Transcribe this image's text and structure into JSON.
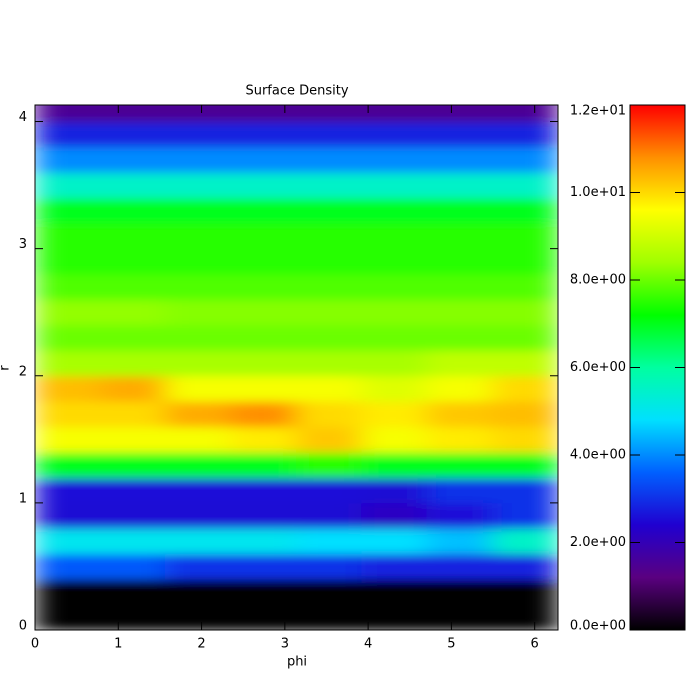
{
  "chart_data": {
    "type": "heatmap",
    "title": "Surface Density",
    "x_label": "phi",
    "y_label": "r",
    "xlim": [
      0,
      6.28
    ],
    "ylim": [
      0,
      4.13
    ],
    "xticks": [
      0,
      1,
      2,
      3,
      4,
      5,
      6
    ],
    "yticks": [
      0,
      1,
      2,
      3,
      4
    ],
    "x_bins": [
      0,
      0.785,
      1.57,
      2.355,
      3.14,
      3.925,
      4.71,
      5.495,
      6.28
    ],
    "y_bins": [
      0,
      0.2,
      0.4,
      0.6,
      0.8,
      1.0,
      1.2,
      1.4,
      1.6,
      1.8,
      2.0,
      2.2,
      2.4,
      2.6,
      2.8,
      3.0,
      3.2,
      3.4,
      3.6,
      3.8,
      4.0,
      4.2
    ],
    "z": [
      [
        0,
        0,
        0,
        0,
        0,
        0,
        0,
        0
      ],
      [
        0,
        0,
        0,
        0,
        0,
        0,
        0,
        0
      ],
      [
        3.5,
        3.5,
        3,
        3,
        3,
        2.8,
        2.8,
        2.8
      ],
      [
        5,
        5,
        5,
        5,
        4.8,
        4.8,
        4.5,
        5.5
      ],
      [
        2.5,
        2.5,
        2.5,
        2.5,
        2.5,
        2.2,
        2.6,
        3
      ],
      [
        2.6,
        2.6,
        2.6,
        2.6,
        2.6,
        2.5,
        3,
        3
      ],
      [
        7,
        7,
        7,
        7,
        7.5,
        7,
        7,
        7
      ],
      [
        9.5,
        9.5,
        9.5,
        9.8,
        10.2,
        9.5,
        9.8,
        10
      ],
      [
        10,
        10,
        10.5,
        10.8,
        10,
        9.8,
        10.2,
        10.3
      ],
      [
        10.3,
        10.5,
        9.5,
        9.5,
        9.5,
        9.2,
        9.5,
        10
      ],
      [
        8.5,
        8.5,
        8.5,
        8.5,
        8.5,
        8.5,
        8.8,
        8.8
      ],
      [
        8,
        8,
        8,
        8,
        8,
        8,
        8,
        8
      ],
      [
        8.3,
        8.3,
        8.2,
        8.2,
        8.2,
        8.2,
        8.2,
        8.2
      ],
      [
        7.8,
        7.8,
        7.8,
        7.8,
        7.8,
        7.8,
        7.8,
        7.8
      ],
      [
        7.5,
        7.5,
        7.5,
        7.5,
        7.5,
        7.5,
        7.5,
        7.5
      ],
      [
        7.5,
        7.5,
        7.5,
        7.5,
        7.5,
        7.5,
        7.5,
        7.5
      ],
      [
        7,
        7,
        7,
        7,
        7,
        7,
        7,
        7
      ],
      [
        5.5,
        5.5,
        5.5,
        5.5,
        5.5,
        5.5,
        5.5,
        5.5
      ],
      [
        4,
        4,
        4,
        4,
        4,
        4,
        4,
        4
      ],
      [
        2.8,
        2.8,
        2.8,
        2.8,
        2.8,
        2.8,
        2.8,
        2.8
      ],
      [
        1.5,
        1.5,
        1.5,
        1.5,
        1.5,
        1.5,
        1.5,
        1.5
      ]
    ],
    "zlim": [
      0,
      12
    ],
    "zticks": [
      {
        "value": 0,
        "label": "0.0e+00"
      },
      {
        "value": 2,
        "label": "2.0e+00"
      },
      {
        "value": 4,
        "label": "4.0e+00"
      },
      {
        "value": 6,
        "label": "6.0e+00"
      },
      {
        "value": 8,
        "label": "8.0e+00"
      },
      {
        "value": 10,
        "label": "1.0e+01"
      },
      {
        "value": 12,
        "label": "1.2e+01"
      }
    ],
    "colorscale": [
      "#000000",
      "#5a0080",
      "#2000d0",
      "#0060ff",
      "#00e0ff",
      "#00ffa0",
      "#00ff00",
      "#a0ff00",
      "#ffff00",
      "#ff9000",
      "#ff0000"
    ]
  }
}
